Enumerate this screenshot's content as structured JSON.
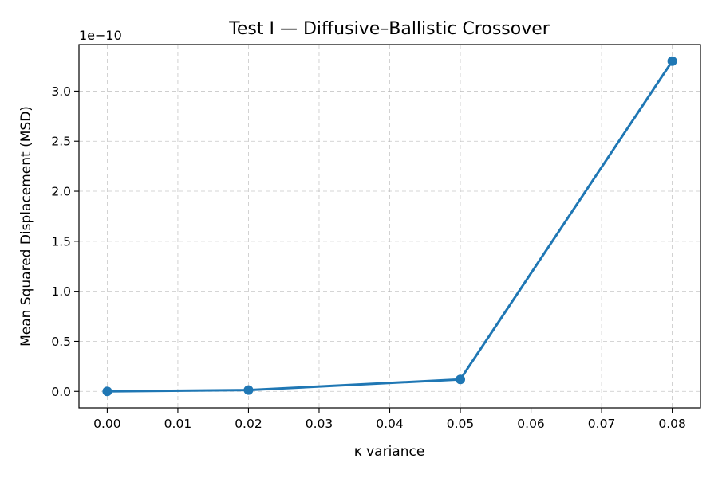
{
  "chart_data": {
    "type": "line",
    "title": "Test I — Diffusive–Ballistic Crossover",
    "xlabel": "κ variance",
    "ylabel": "Mean Squared Displacement (MSD)",
    "y_offset_label": "1e−10",
    "x_ticks": [
      0.0,
      0.01,
      0.02,
      0.03,
      0.04,
      0.05,
      0.06,
      0.07,
      0.08
    ],
    "x_tick_labels": [
      "0.00",
      "0.01",
      "0.02",
      "0.03",
      "0.04",
      "0.05",
      "0.06",
      "0.07",
      "0.08"
    ],
    "y_ticks": [
      0.0,
      0.5,
      1.0,
      1.5,
      2.0,
      2.5,
      3.0
    ],
    "y_tick_labels": [
      "0.0",
      "0.5",
      "1.0",
      "1.5",
      "2.0",
      "2.5",
      "3.0"
    ],
    "xlim": [
      -0.004,
      0.084
    ],
    "ylim": [
      -0.165,
      3.465
    ],
    "grid": true,
    "series": [
      {
        "x": [
          0.0,
          0.02,
          0.05,
          0.08
        ],
        "y": [
          0.0,
          0.013,
          0.12,
          3.3
        ],
        "color": "#1f77b4"
      }
    ]
  }
}
